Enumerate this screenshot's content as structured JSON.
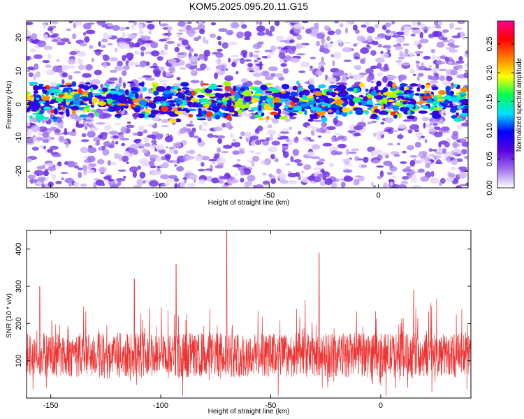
{
  "title": "KOM5.2025.095.20.11.G15",
  "chart_data": [
    {
      "type": "heatmap",
      "xlabel": "Height of straight line (km)",
      "ylabel": "Frequency (Hz)",
      "xlim": [
        -161,
        41
      ],
      "ylim": [
        -25,
        25
      ],
      "xticks": [
        -150,
        -100,
        -50,
        0
      ],
      "yticks": [
        20,
        10,
        0,
        -10,
        -20
      ],
      "colorbar": {
        "label": "Normalized spectral amplitude",
        "range": [
          0.0,
          0.29
        ],
        "ticks": [
          "0.00",
          "0.05",
          "0.10",
          "0.15",
          "0.20",
          "0.25"
        ],
        "colors": [
          "#ffffff",
          "#a070f0",
          "#5a00e0",
          "#0000ff",
          "#00e0ff",
          "#00ff50",
          "#ffff00",
          "#ff8000",
          "#ff0000",
          "#ff0090"
        ]
      },
      "signal_band_hz": [
        -5,
        7
      ]
    },
    {
      "type": "line",
      "xlabel": "Height of straight line (km)",
      "ylabel": "SNR (10 * v/v)",
      "xlim": [
        -161,
        41
      ],
      "ylim": [
        0,
        450
      ],
      "xticks": [
        -150,
        -100,
        -50,
        0
      ],
      "yticks": [
        100,
        200,
        300,
        400
      ],
      "color": "#ee3333",
      "peaks": [
        {
          "x": -155,
          "y": 300
        },
        {
          "x": -112,
          "y": 320
        },
        {
          "x": -93,
          "y": 360
        },
        {
          "x": -70,
          "y": 450
        },
        {
          "x": -28,
          "y": 390
        },
        {
          "x": 15,
          "y": 290
        }
      ]
    }
  ]
}
